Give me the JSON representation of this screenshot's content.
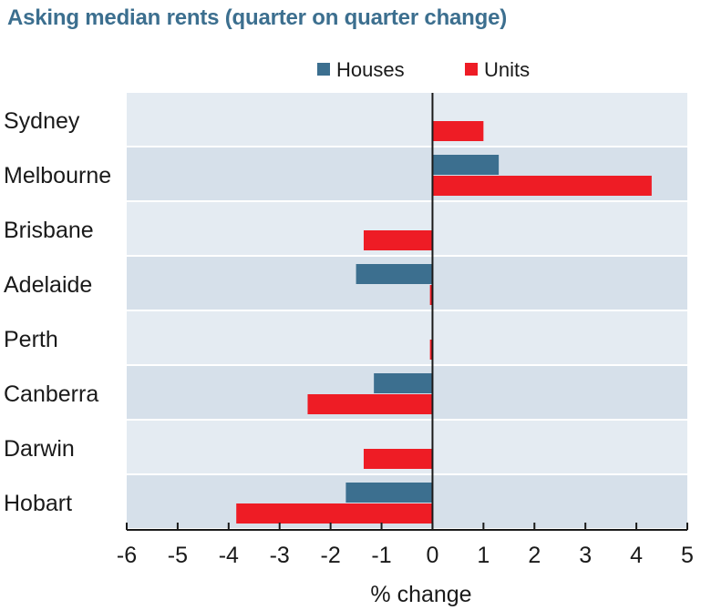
{
  "chart_data": {
    "type": "bar",
    "orientation": "horizontal",
    "title": "Asking median rents (quarter on quarter change)",
    "categories": [
      "Sydney",
      "Melbourne",
      "Brisbane",
      "Adelaide",
      "Perth",
      "Canberra",
      "Darwin",
      "Hobart"
    ],
    "series": [
      {
        "name": "Houses",
        "color": "#3c6f8f",
        "values": [
          0.0,
          1.3,
          0.0,
          -1.5,
          0.0,
          -1.15,
          0.0,
          -1.7
        ]
      },
      {
        "name": "Units",
        "color": "#ee1c25",
        "values": [
          1.0,
          4.3,
          -1.35,
          -0.05,
          -0.05,
          -2.45,
          -1.35,
          -3.85
        ]
      }
    ],
    "xlabel": "% change",
    "xlim": [
      -6,
      5
    ],
    "xticks": [
      -6,
      -5,
      -4,
      -3,
      -2,
      -1,
      0,
      1,
      2,
      3,
      4,
      5
    ],
    "legend": "top",
    "grid": false,
    "band_colors": [
      "#e4ebf2",
      "#d6e0ea"
    ]
  }
}
